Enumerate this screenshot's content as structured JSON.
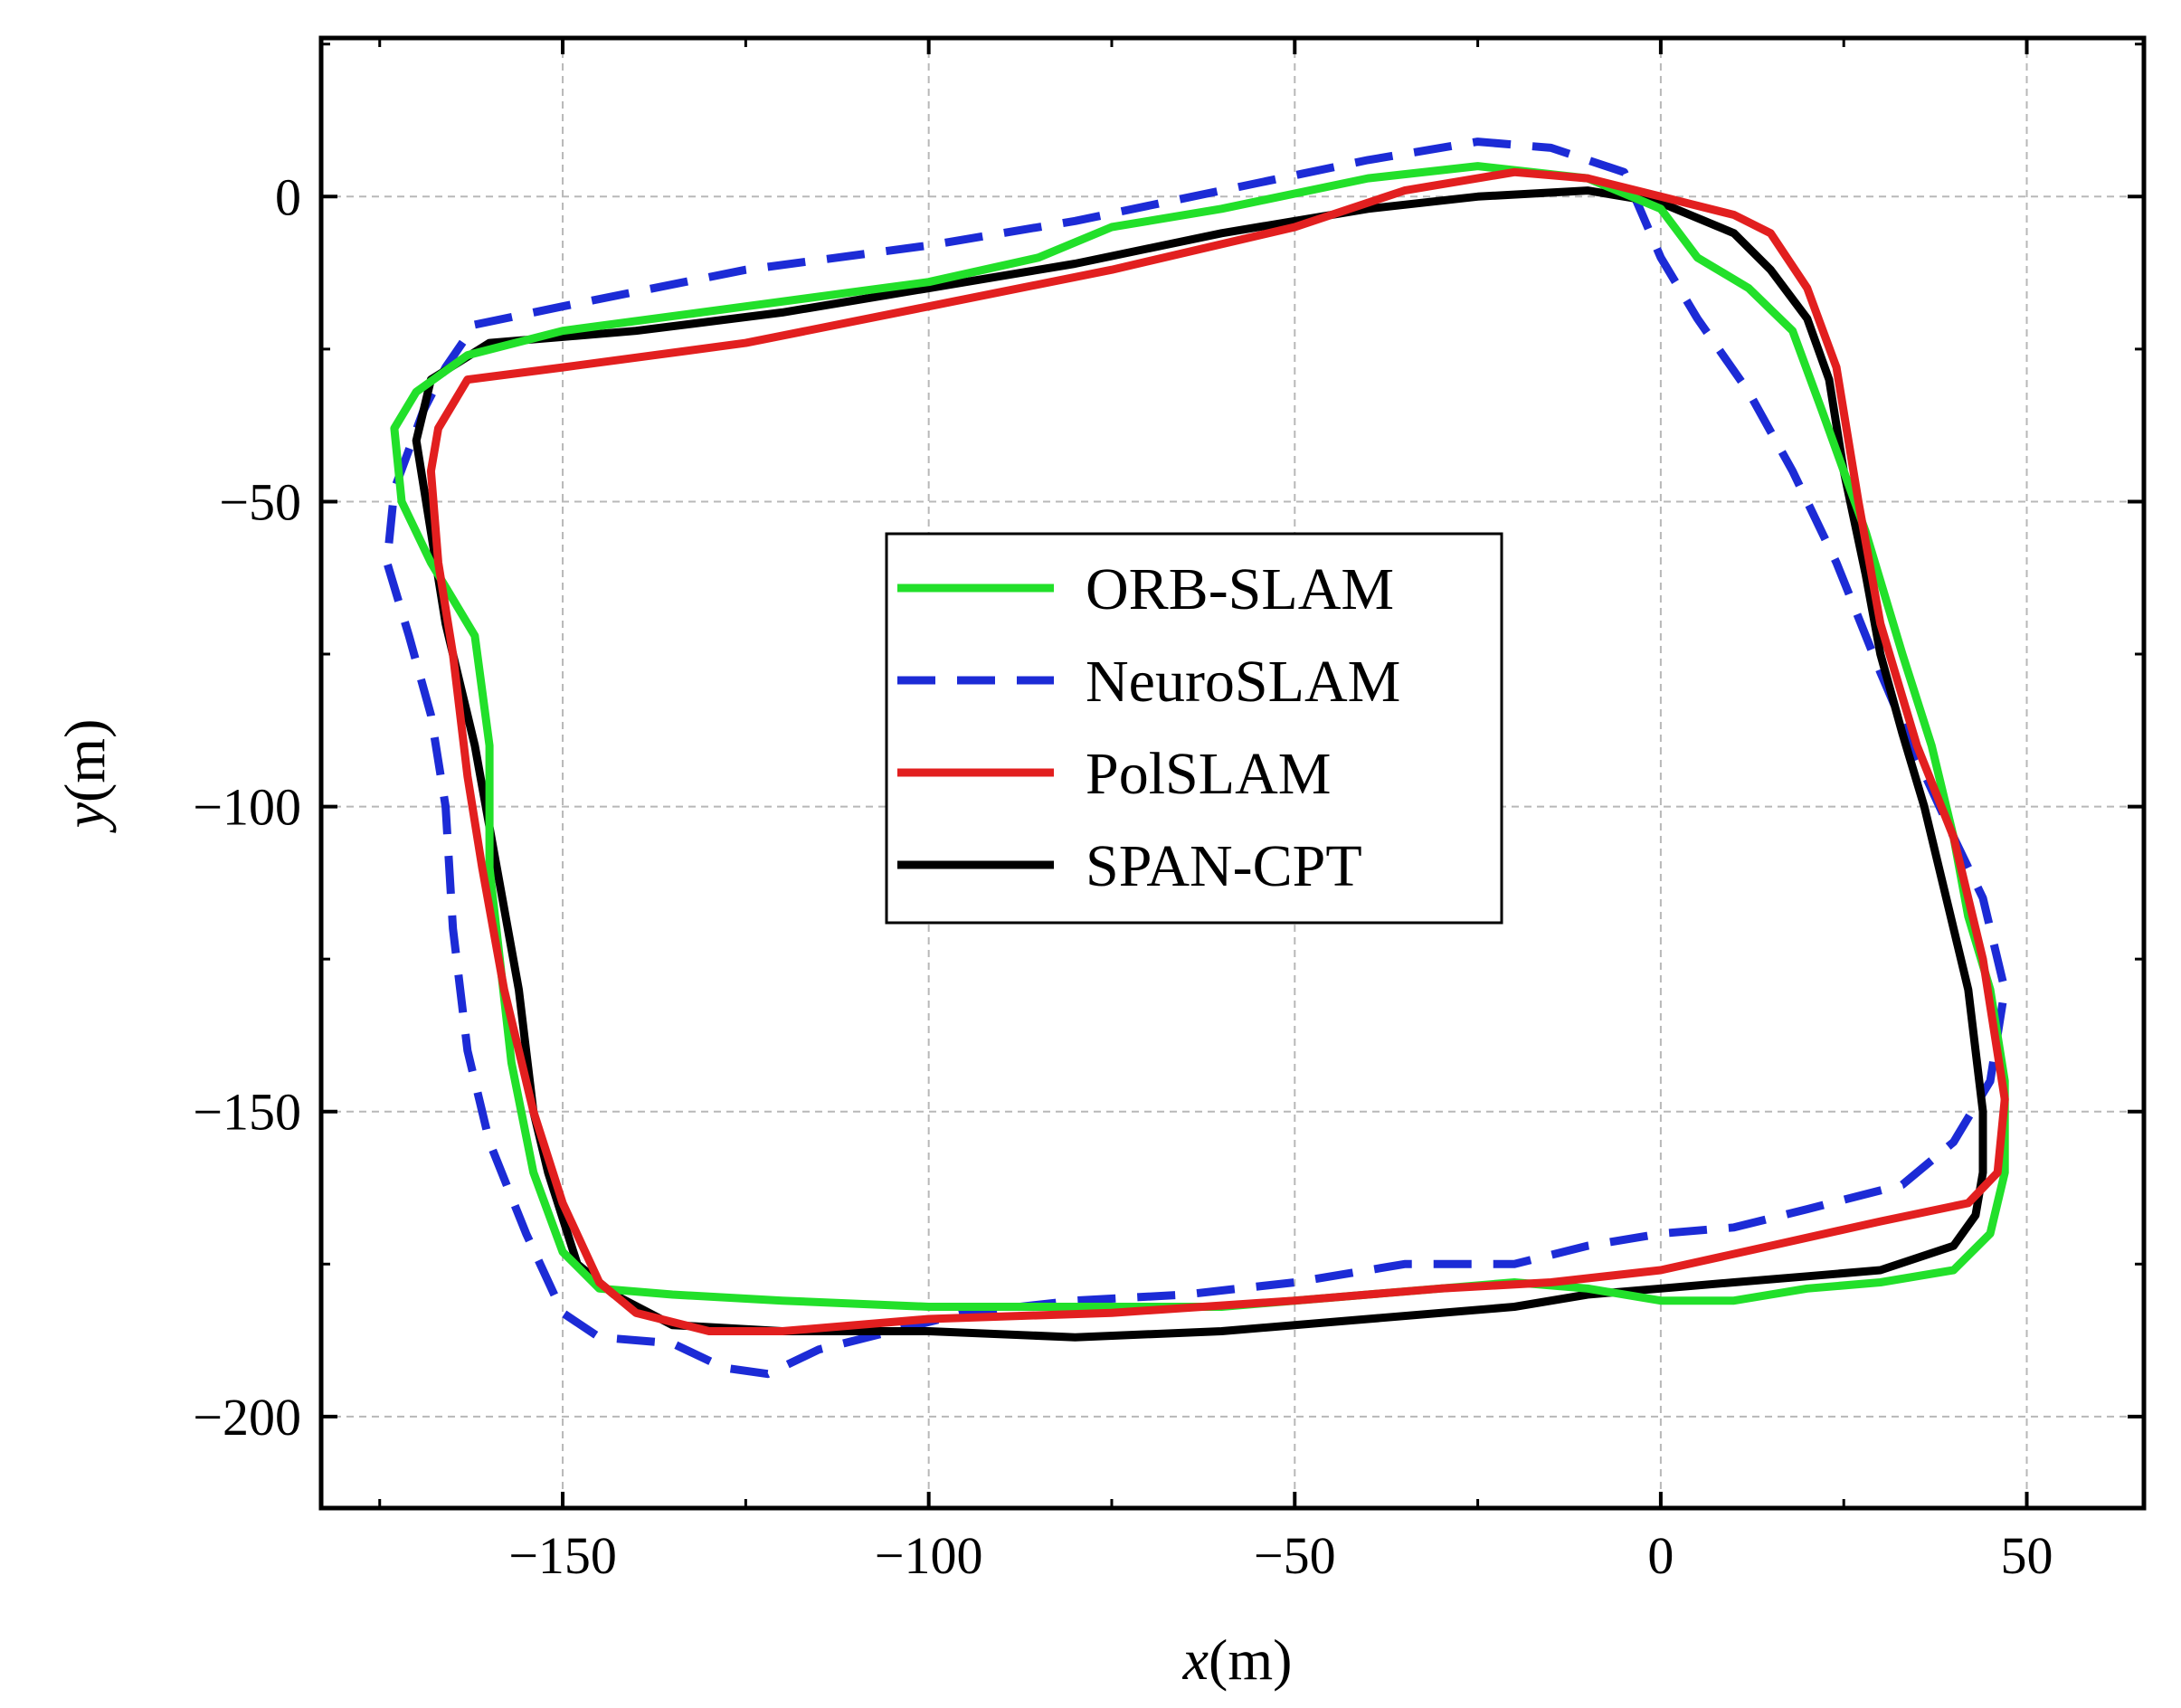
{
  "chart_data": {
    "type": "line",
    "title": "",
    "xlabel": "x(m)",
    "ylabel": "y(m)",
    "xlabel_var": "x",
    "ylabel_var": "y",
    "xlabel_unit": "(m)",
    "ylabel_unit": "(m)",
    "xlim": [
      -183,
      66
    ],
    "ylim": [
      -215,
      26
    ],
    "xticks": [
      -150,
      -100,
      -50,
      0,
      50
    ],
    "yticks": [
      0,
      -50,
      -100,
      -150,
      -200
    ],
    "xtick_labels": [
      "−150",
      "−100",
      "−50",
      "0",
      "50"
    ],
    "ytick_labels": [
      "0",
      "−50",
      "−100",
      "−150",
      "−200"
    ],
    "grid": true,
    "legend_position": "center",
    "series": [
      {
        "name": "ORB-SLAM",
        "color": "#22e02a",
        "style": "solid",
        "points": [
          [
            -163,
            -26
          ],
          [
            -150,
            -22
          ],
          [
            -125,
            -18
          ],
          [
            -100,
            -14
          ],
          [
            -85,
            -10
          ],
          [
            -75,
            -5
          ],
          [
            -60,
            -2
          ],
          [
            -40,
            3
          ],
          [
            -25,
            5
          ],
          [
            -10,
            3
          ],
          [
            0,
            -2
          ],
          [
            5,
            -10
          ],
          [
            12,
            -15
          ],
          [
            18,
            -22
          ],
          [
            22,
            -35
          ],
          [
            28,
            -55
          ],
          [
            33,
            -75
          ],
          [
            37,
            -90
          ],
          [
            40,
            -105
          ],
          [
            42,
            -118
          ],
          [
            45,
            -130
          ],
          [
            47,
            -145
          ],
          [
            47,
            -160
          ],
          [
            45,
            -170
          ],
          [
            40,
            -176
          ],
          [
            30,
            -178
          ],
          [
            20,
            -179
          ],
          [
            10,
            -181
          ],
          [
            0,
            -181
          ],
          [
            -10,
            -179
          ],
          [
            -20,
            -178
          ],
          [
            -40,
            -180
          ],
          [
            -60,
            -182
          ],
          [
            -80,
            -182
          ],
          [
            -100,
            -182
          ],
          [
            -120,
            -181
          ],
          [
            -135,
            -180
          ],
          [
            -145,
            -179
          ],
          [
            -150,
            -173
          ],
          [
            -154,
            -160
          ],
          [
            -157,
            -142
          ],
          [
            -160,
            -110
          ],
          [
            -160,
            -90
          ],
          [
            -162,
            -72
          ],
          [
            -168,
            -60
          ],
          [
            -172,
            -50
          ],
          [
            -173,
            -38
          ],
          [
            -170,
            -32
          ],
          [
            -163,
            -26
          ]
        ]
      },
      {
        "name": "NeuroSLAM",
        "color": "#1c2bd6",
        "style": "dashed",
        "points": [
          [
            -162,
            -21
          ],
          [
            -150,
            -18
          ],
          [
            -125,
            -12
          ],
          [
            -100,
            -8
          ],
          [
            -80,
            -4
          ],
          [
            -60,
            1
          ],
          [
            -40,
            6
          ],
          [
            -25,
            9
          ],
          [
            -15,
            8
          ],
          [
            -5,
            4
          ],
          [
            0,
            -10
          ],
          [
            5,
            -20
          ],
          [
            12,
            -32
          ],
          [
            18,
            -45
          ],
          [
            24,
            -60
          ],
          [
            30,
            -78
          ],
          [
            35,
            -92
          ],
          [
            40,
            -105
          ],
          [
            44,
            -115
          ],
          [
            47,
            -130
          ],
          [
            45,
            -145
          ],
          [
            40,
            -155
          ],
          [
            33,
            -162
          ],
          [
            20,
            -166
          ],
          [
            10,
            -169
          ],
          [
            0,
            -170
          ],
          [
            -10,
            -172
          ],
          [
            -20,
            -175
          ],
          [
            -35,
            -175
          ],
          [
            -50,
            -178
          ],
          [
            -65,
            -180
          ],
          [
            -80,
            -181
          ],
          [
            -95,
            -183
          ],
          [
            -105,
            -186
          ],
          [
            -115,
            -189
          ],
          [
            -122,
            -193
          ],
          [
            -128,
            -192
          ],
          [
            -135,
            -188
          ],
          [
            -145,
            -187
          ],
          [
            -150,
            -183
          ],
          [
            -155,
            -170
          ],
          [
            -160,
            -155
          ],
          [
            -163,
            -140
          ],
          [
            -165,
            -120
          ],
          [
            -166,
            -100
          ],
          [
            -168,
            -85
          ],
          [
            -171,
            -72
          ],
          [
            -174,
            -60
          ],
          [
            -173,
            -48
          ],
          [
            -169,
            -35
          ],
          [
            -166,
            -28
          ],
          [
            -162,
            -21
          ]
        ]
      },
      {
        "name": "PolSLAM",
        "color": "#e21f1f",
        "style": "solid",
        "points": [
          [
            -163,
            -30
          ],
          [
            -150,
            -28
          ],
          [
            -125,
            -24
          ],
          [
            -100,
            -18
          ],
          [
            -75,
            -12
          ],
          [
            -50,
            -5
          ],
          [
            -35,
            1
          ],
          [
            -20,
            4
          ],
          [
            -10,
            3
          ],
          [
            0,
            0
          ],
          [
            10,
            -3
          ],
          [
            15,
            -6
          ],
          [
            20,
            -15
          ],
          [
            24,
            -28
          ],
          [
            27,
            -50
          ],
          [
            30,
            -70
          ],
          [
            35,
            -90
          ],
          [
            40,
            -105
          ],
          [
            44,
            -125
          ],
          [
            47,
            -148
          ],
          [
            46,
            -160
          ],
          [
            42,
            -165
          ],
          [
            30,
            -168
          ],
          [
            15,
            -172
          ],
          [
            0,
            -176
          ],
          [
            -15,
            -178
          ],
          [
            -30,
            -179
          ],
          [
            -50,
            -181
          ],
          [
            -75,
            -183
          ],
          [
            -100,
            -184
          ],
          [
            -120,
            -186
          ],
          [
            -130,
            -186
          ],
          [
            -140,
            -183
          ],
          [
            -145,
            -178
          ],
          [
            -150,
            -165
          ],
          [
            -154,
            -150
          ],
          [
            -158,
            -130
          ],
          [
            -161,
            -110
          ],
          [
            -163,
            -95
          ],
          [
            -165,
            -75
          ],
          [
            -167,
            -60
          ],
          [
            -168,
            -45
          ],
          [
            -167,
            -38
          ],
          [
            -163,
            -30
          ]
        ]
      },
      {
        "name": "SPAN-CPT",
        "color": "#000000",
        "style": "solid",
        "points": [
          [
            -160,
            -24
          ],
          [
            -140,
            -22
          ],
          [
            -120,
            -19
          ],
          [
            -100,
            -15
          ],
          [
            -80,
            -11
          ],
          [
            -60,
            -6
          ],
          [
            -40,
            -2
          ],
          [
            -25,
            0
          ],
          [
            -10,
            1
          ],
          [
            -5,
            0
          ],
          [
            0,
            -1
          ],
          [
            10,
            -6
          ],
          [
            15,
            -12
          ],
          [
            20,
            -20
          ],
          [
            23,
            -30
          ],
          [
            25,
            -45
          ],
          [
            28,
            -62
          ],
          [
            30,
            -75
          ],
          [
            33,
            -88
          ],
          [
            36,
            -100
          ],
          [
            38,
            -110
          ],
          [
            40,
            -120
          ],
          [
            42,
            -130
          ],
          [
            43,
            -140
          ],
          [
            44,
            -150
          ],
          [
            44,
            -160
          ],
          [
            43,
            -167
          ],
          [
            40,
            -172
          ],
          [
            30,
            -176
          ],
          [
            20,
            -177
          ],
          [
            10,
            -178
          ],
          [
            0,
            -179
          ],
          [
            -10,
            -180
          ],
          [
            -20,
            -182
          ],
          [
            -40,
            -184
          ],
          [
            -60,
            -186
          ],
          [
            -80,
            -187
          ],
          [
            -100,
            -186
          ],
          [
            -120,
            -186
          ],
          [
            -135,
            -185
          ],
          [
            -143,
            -180
          ],
          [
            -148,
            -175
          ],
          [
            -152,
            -160
          ],
          [
            -154,
            -150
          ],
          [
            -156,
            -130
          ],
          [
            -159,
            -110
          ],
          [
            -162,
            -90
          ],
          [
            -166,
            -70
          ],
          [
            -168,
            -55
          ],
          [
            -170,
            -40
          ],
          [
            -168,
            -30
          ],
          [
            -160,
            -24
          ]
        ]
      }
    ]
  }
}
